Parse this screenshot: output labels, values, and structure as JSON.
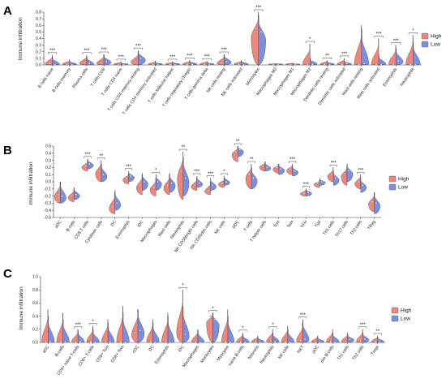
{
  "colors": {
    "high": "#f0857a",
    "low": "#7b8fe2"
  },
  "chart_data": [
    {
      "type": "violin",
      "panel": "A",
      "ylabel": "Immune infiltration",
      "ylim": [
        0,
        0.8
      ],
      "yticks": [
        "0.0",
        "0.1",
        "0.2",
        "0.3",
        "0.4",
        "0.5",
        "0.6",
        "0.7",
        "0.8"
      ],
      "legend": {
        "placement": "right",
        "entries": [
          "High",
          "Low"
        ]
      },
      "categories": [
        "B cells naive",
        "B cells memory",
        "Plasma cells",
        "T cells CD8",
        "T cells CD4 naive",
        "T cells CD4 memory resting",
        "T cells CD4 memory activated",
        "T cells follicular helper",
        "T cells regulatory (Tregs)",
        "T cells gamma delta",
        "NK cells resting",
        "NK cells activated",
        "Monocytes",
        "Macrophages M0",
        "Macrophages M1",
        "Macrophages M2",
        "Dendritic cells resting",
        "Dendritic cells activated",
        "Mast cells resting",
        "Mast cells activated",
        "Eosinophils",
        "Neutrophils"
      ],
      "series": [
        {
          "name": "High",
          "medians": [
            0.02,
            0.01,
            0.03,
            0.03,
            0.0,
            0.05,
            0.01,
            0.01,
            0.01,
            0.01,
            0.03,
            0.01,
            0.55,
            0.0,
            0.0,
            0.01,
            0.01,
            0.01,
            0.01,
            0.01,
            0.01,
            0.01
          ],
          "maxima": [
            0.15,
            0.08,
            0.15,
            0.16,
            0.05,
            0.2,
            0.06,
            0.05,
            0.07,
            0.06,
            0.15,
            0.07,
            0.8,
            0.02,
            0.03,
            0.32,
            0.07,
            0.1,
            0.6,
            0.4,
            0.3,
            0.45
          ]
        },
        {
          "name": "Low",
          "medians": [
            0.0,
            0.0,
            0.02,
            0.05,
            0.0,
            0.1,
            0.0,
            0.0,
            0.01,
            0.0,
            0.05,
            0.0,
            0.5,
            0.0,
            0.0,
            0.01,
            0.0,
            0.02,
            0.02,
            0.0,
            0.06,
            0.0
          ],
          "maxima": [
            0.12,
            0.06,
            0.12,
            0.15,
            0.03,
            0.22,
            0.04,
            0.04,
            0.06,
            0.04,
            0.16,
            0.06,
            0.75,
            0.02,
            0.02,
            0.1,
            0.05,
            0.06,
            0.55,
            0.15,
            0.25,
            0.35
          ]
        }
      ],
      "significance": [
        "***",
        "",
        "***",
        "***",
        "***",
        "***",
        "",
        "***",
        "***",
        "***",
        "***",
        "",
        "***",
        "",
        "",
        "*",
        "**",
        "***",
        "",
        "***",
        "***",
        "*"
      ]
    },
    {
      "type": "violin",
      "panel": "B",
      "ylabel": "Immune infiltration",
      "ylim": [
        -0.5,
        0.5
      ],
      "yticks": [
        "-0.5",
        "-0.4",
        "-0.3",
        "-0.2",
        "-0.1",
        "0.0",
        "0.1",
        "0.2",
        "0.3",
        "0.4",
        "0.5"
      ],
      "legend": {
        "placement": "right",
        "entries": [
          "High",
          "Low"
        ]
      },
      "categories": [
        "aDC",
        "B cells",
        "CD8 T cells",
        "Cytotoxic cells",
        "DC",
        "Eosinophils",
        "iDC",
        "Macrophages",
        "Mast cells",
        "Neutrophils",
        "NK CD56bright cells",
        "NK CD56dim cells",
        "NK cells",
        "pDC",
        "T cells",
        "T helper cells",
        "Tcm",
        "Tem",
        "TFH",
        "Tgd",
        "Th1 cells",
        "Th17 cells",
        "Th2 cells",
        "TReg"
      ],
      "series": [
        {
          "name": "High",
          "medians": [
            -0.18,
            -0.2,
            0.22,
            0.15,
            -0.35,
            0.05,
            -0.05,
            -0.08,
            -0.05,
            0.15,
            -0.05,
            -0.12,
            -0.02,
            0.42,
            0.1,
            0.22,
            0.2,
            0.18,
            -0.16,
            -0.02,
            0.1,
            0.12,
            0.0,
            -0.28
          ],
          "minima": [
            -0.3,
            -0.28,
            0.15,
            0.0,
            -0.45,
            -0.03,
            -0.18,
            -0.2,
            -0.18,
            -0.25,
            -0.12,
            -0.18,
            -0.08,
            0.28,
            -0.1,
            0.15,
            0.12,
            0.1,
            -0.2,
            -0.08,
            0.0,
            -0.05,
            -0.1,
            -0.42
          ],
          "maxima": [
            0.0,
            -0.1,
            0.3,
            0.3,
            -0.15,
            0.12,
            0.1,
            0.05,
            0.1,
            0.42,
            0.05,
            0.0,
            0.05,
            0.5,
            0.25,
            0.28,
            0.25,
            0.25,
            -0.1,
            0.02,
            0.2,
            0.22,
            0.1,
            -0.15
          ]
        },
        {
          "name": "Low",
          "medians": [
            -0.2,
            -0.18,
            0.25,
            0.1,
            -0.3,
            0.08,
            0.0,
            0.0,
            -0.02,
            0.05,
            -0.02,
            -0.05,
            0.0,
            0.45,
            0.05,
            0.2,
            0.18,
            0.15,
            -0.15,
            0.0,
            0.05,
            0.15,
            -0.05,
            -0.3
          ],
          "minima": [
            -0.3,
            -0.25,
            0.18,
            0.0,
            -0.4,
            0.0,
            -0.12,
            -0.12,
            -0.15,
            -0.2,
            -0.08,
            -0.12,
            -0.05,
            0.35,
            -0.1,
            0.15,
            0.1,
            0.08,
            -0.2,
            -0.05,
            -0.05,
            0.0,
            -0.15,
            -0.45
          ],
          "maxima": [
            0.0,
            -0.08,
            0.32,
            0.25,
            -0.12,
            0.15,
            0.12,
            0.1,
            0.12,
            0.35,
            0.08,
            0.05,
            0.08,
            0.5,
            0.2,
            0.28,
            0.25,
            0.22,
            -0.1,
            0.05,
            0.15,
            0.25,
            0.05,
            -0.15
          ]
        }
      ],
      "significance": [
        "",
        "",
        "***",
        "**",
        "",
        "***",
        "",
        "*",
        "",
        "**",
        "***",
        "***",
        "*",
        "**",
        "**",
        "",
        "",
        "***",
        "***",
        "",
        "***",
        "",
        "***",
        ""
      ]
    },
    {
      "type": "violin",
      "panel": "C",
      "ylabel": "Immune infiltration",
      "ylim": [
        0,
        1.0
      ],
      "yticks": [
        "0.0",
        "0.2",
        "0.4",
        "0.6",
        "0.8",
        "1.0"
      ],
      "legend": {
        "placement": "right",
        "entries": [
          "High",
          "Low"
        ]
      },
      "categories": [
        "aDC",
        "B-cells",
        "CD4+ naive T-cells",
        "CD8+ T-cells",
        "CD8+ Tcm",
        "CD8+ Tem",
        "cDC",
        "DC",
        "Eosinophils",
        "iDC",
        "Macrophages",
        "Monocytes",
        "Myocytes",
        "naive B-cells",
        "Neurons",
        "Neutrophils",
        "NK cells",
        "NKT",
        "pDC",
        "pro B-cells",
        "Th1 cells",
        "Th2 cells",
        "Tregs"
      ],
      "series": [
        {
          "name": "High",
          "medians": [
            0.01,
            0.01,
            0.01,
            0.01,
            0.01,
            0.01,
            0.15,
            0.01,
            0.01,
            0.2,
            0.01,
            0.4,
            0.01,
            0.01,
            0.01,
            0.02,
            0.01,
            0.03,
            0.0,
            0.01,
            0.02,
            0.02,
            0.01
          ],
          "maxima": [
            0.5,
            0.45,
            0.2,
            0.25,
            0.35,
            0.55,
            0.5,
            0.35,
            0.45,
            0.8,
            0.2,
            0.45,
            0.5,
            0.15,
            0.1,
            0.2,
            0.25,
            0.3,
            0.1,
            0.2,
            0.15,
            0.2,
            0.1
          ]
        },
        {
          "name": "Low",
          "medians": [
            0.01,
            0.01,
            0.01,
            0.0,
            0.01,
            0.0,
            0.18,
            0.0,
            0.0,
            0.12,
            0.0,
            0.35,
            0.0,
            0.0,
            0.0,
            0.01,
            0.0,
            0.05,
            0.0,
            0.0,
            0.05,
            0.05,
            0.0
          ],
          "maxima": [
            0.4,
            0.35,
            0.18,
            0.2,
            0.3,
            0.45,
            0.5,
            0.3,
            0.4,
            0.55,
            0.18,
            0.45,
            0.4,
            0.12,
            0.08,
            0.15,
            0.2,
            0.35,
            0.08,
            0.15,
            0.12,
            0.15,
            0.08
          ]
        }
      ],
      "significance": [
        "",
        "",
        "***",
        "*",
        "",
        "",
        "",
        "",
        "",
        "*",
        "",
        "*",
        "",
        "*",
        "",
        "*",
        "",
        "***",
        "",
        "",
        "",
        "***",
        "**"
      ]
    }
  ]
}
